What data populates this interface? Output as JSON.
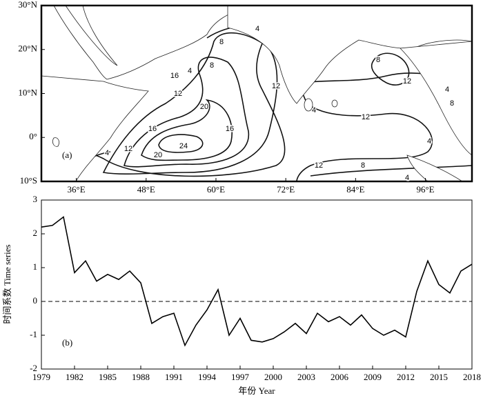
{
  "chart_data": [
    {
      "type": "map",
      "panel_label": "(a)",
      "xlim": [
        30,
        104
      ],
      "ylim": [
        -10,
        30
      ],
      "xticks": [
        {
          "value": 36,
          "label": "36°E"
        },
        {
          "value": 48,
          "label": "48°E"
        },
        {
          "value": 60,
          "label": "60°E"
        },
        {
          "value": 72,
          "label": "72°E"
        },
        {
          "value": 84,
          "label": "84°E"
        },
        {
          "value": 96,
          "label": "96°E"
        }
      ],
      "yticks": [
        {
          "value": 30,
          "label": "30°N"
        },
        {
          "value": 20,
          "label": "20°N"
        },
        {
          "value": 10,
          "label": "10°N"
        },
        {
          "value": 0,
          "label": "0°"
        },
        {
          "value": -10,
          "label": "10°S"
        }
      ],
      "contour_labels": [
        4,
        8,
        8,
        4,
        16,
        12,
        12,
        4,
        20,
        16,
        16,
        24,
        20,
        12,
        4,
        12,
        12,
        8,
        4,
        8,
        12,
        4,
        8,
        4
      ]
    },
    {
      "type": "line",
      "panel_label": "(b)",
      "xlabel": "年份 Year",
      "ylabel": "时间系数 Time series",
      "x": [
        1979,
        1980,
        1981,
        1982,
        1983,
        1984,
        1985,
        1986,
        1987,
        1988,
        1989,
        1990,
        1991,
        1992,
        1993,
        1994,
        1995,
        1996,
        1997,
        1998,
        1999,
        2000,
        2001,
        2002,
        2003,
        2004,
        2005,
        2006,
        2007,
        2008,
        2009,
        2010,
        2011,
        2012,
        2013,
        2014,
        2015,
        2016,
        2017,
        2018
      ],
      "values": [
        2.2,
        2.25,
        2.5,
        0.85,
        1.2,
        0.6,
        0.8,
        0.65,
        0.9,
        0.55,
        -0.65,
        -0.45,
        -0.35,
        -1.3,
        -0.7,
        -0.25,
        0.35,
        -1.0,
        -0.5,
        -1.15,
        -1.2,
        -1.1,
        -0.9,
        -0.65,
        -0.95,
        -0.35,
        -0.6,
        -0.45,
        -0.7,
        -0.4,
        -0.8,
        -1.0,
        -0.85,
        -1.05,
        0.3,
        1.2,
        0.5,
        0.25,
        0.9,
        1.1
      ],
      "color": "#000000",
      "reference_line": 0,
      "xlim": [
        1979,
        2018
      ],
      "ylim": [
        -2,
        3
      ],
      "xticks": [
        1979,
        1982,
        1985,
        1988,
        1991,
        1994,
        1997,
        2000,
        2003,
        2006,
        2009,
        2012,
        2015,
        2018
      ],
      "yticks": [
        -2,
        -1,
        0,
        1,
        2,
        3
      ]
    }
  ]
}
